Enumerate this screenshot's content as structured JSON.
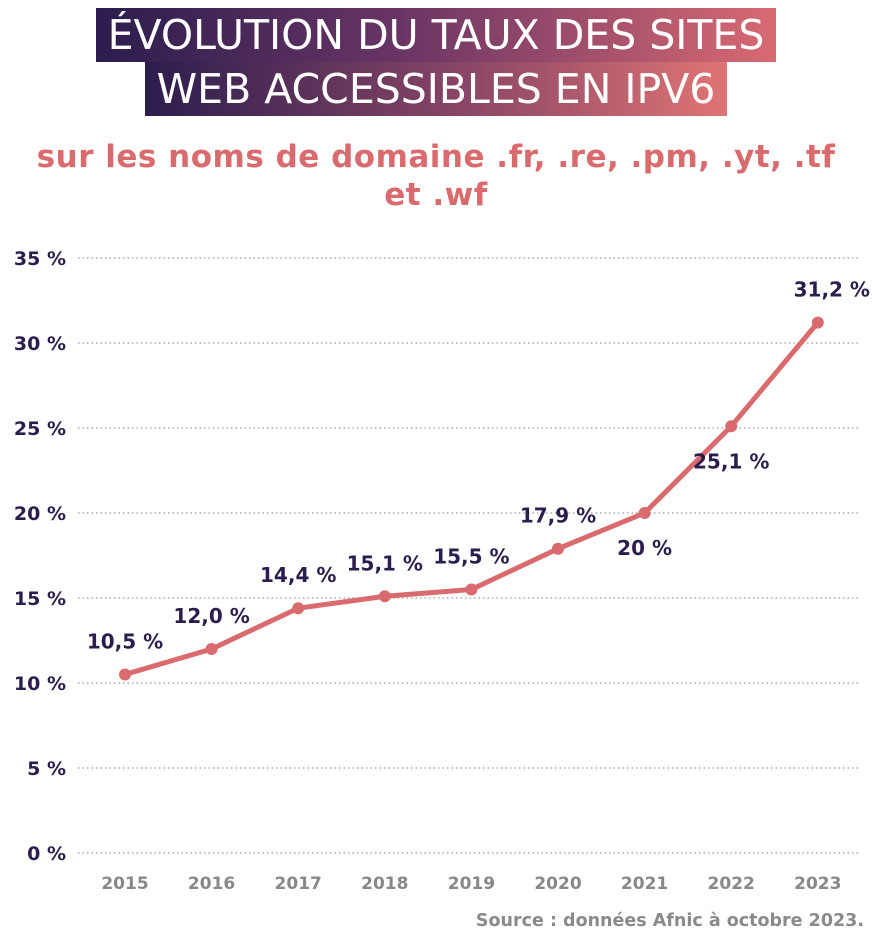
{
  "title": {
    "line1": "ÉVOLUTION DU TAUX DES SITES",
    "line2": "WEB ACCESSIBLES EN IPV6"
  },
  "subtitle": "sur les noms de domaine .fr, .re, .pm, .yt, .tf et .wf",
  "source": "Source : données Afnic à octobre 2023.",
  "colors": {
    "line": "#d96a6e",
    "label": "#2b1d4e",
    "tick": "#888888",
    "axis_label": "#2b1d4e",
    "grid": "#999999"
  },
  "chart_data": {
    "type": "line",
    "categories": [
      "2015",
      "2016",
      "2017",
      "2018",
      "2019",
      "2020",
      "2021",
      "2022",
      "2023"
    ],
    "series": [
      {
        "values": [
          10.5,
          12.0,
          14.4,
          15.1,
          15.5,
          17.9,
          20,
          25.1,
          31.2
        ]
      }
    ],
    "data_labels": [
      "10,5 %",
      "12,0 %",
      "14,4 %",
      "15,1 %",
      "15,5 %",
      "17,9 %",
      "20 %",
      "25,1 %",
      "31,2 %"
    ],
    "ylim": [
      0,
      35
    ],
    "y_ticks": [
      0,
      5,
      10,
      15,
      20,
      25,
      30,
      35
    ],
    "y_tick_labels": [
      "0 %",
      "5 %",
      "10 %",
      "15 %",
      "20 %",
      "25 %",
      "30 %",
      "35 %"
    ],
    "grid": true,
    "grid_style": "dotted",
    "xlabel": "",
    "ylabel": ""
  }
}
